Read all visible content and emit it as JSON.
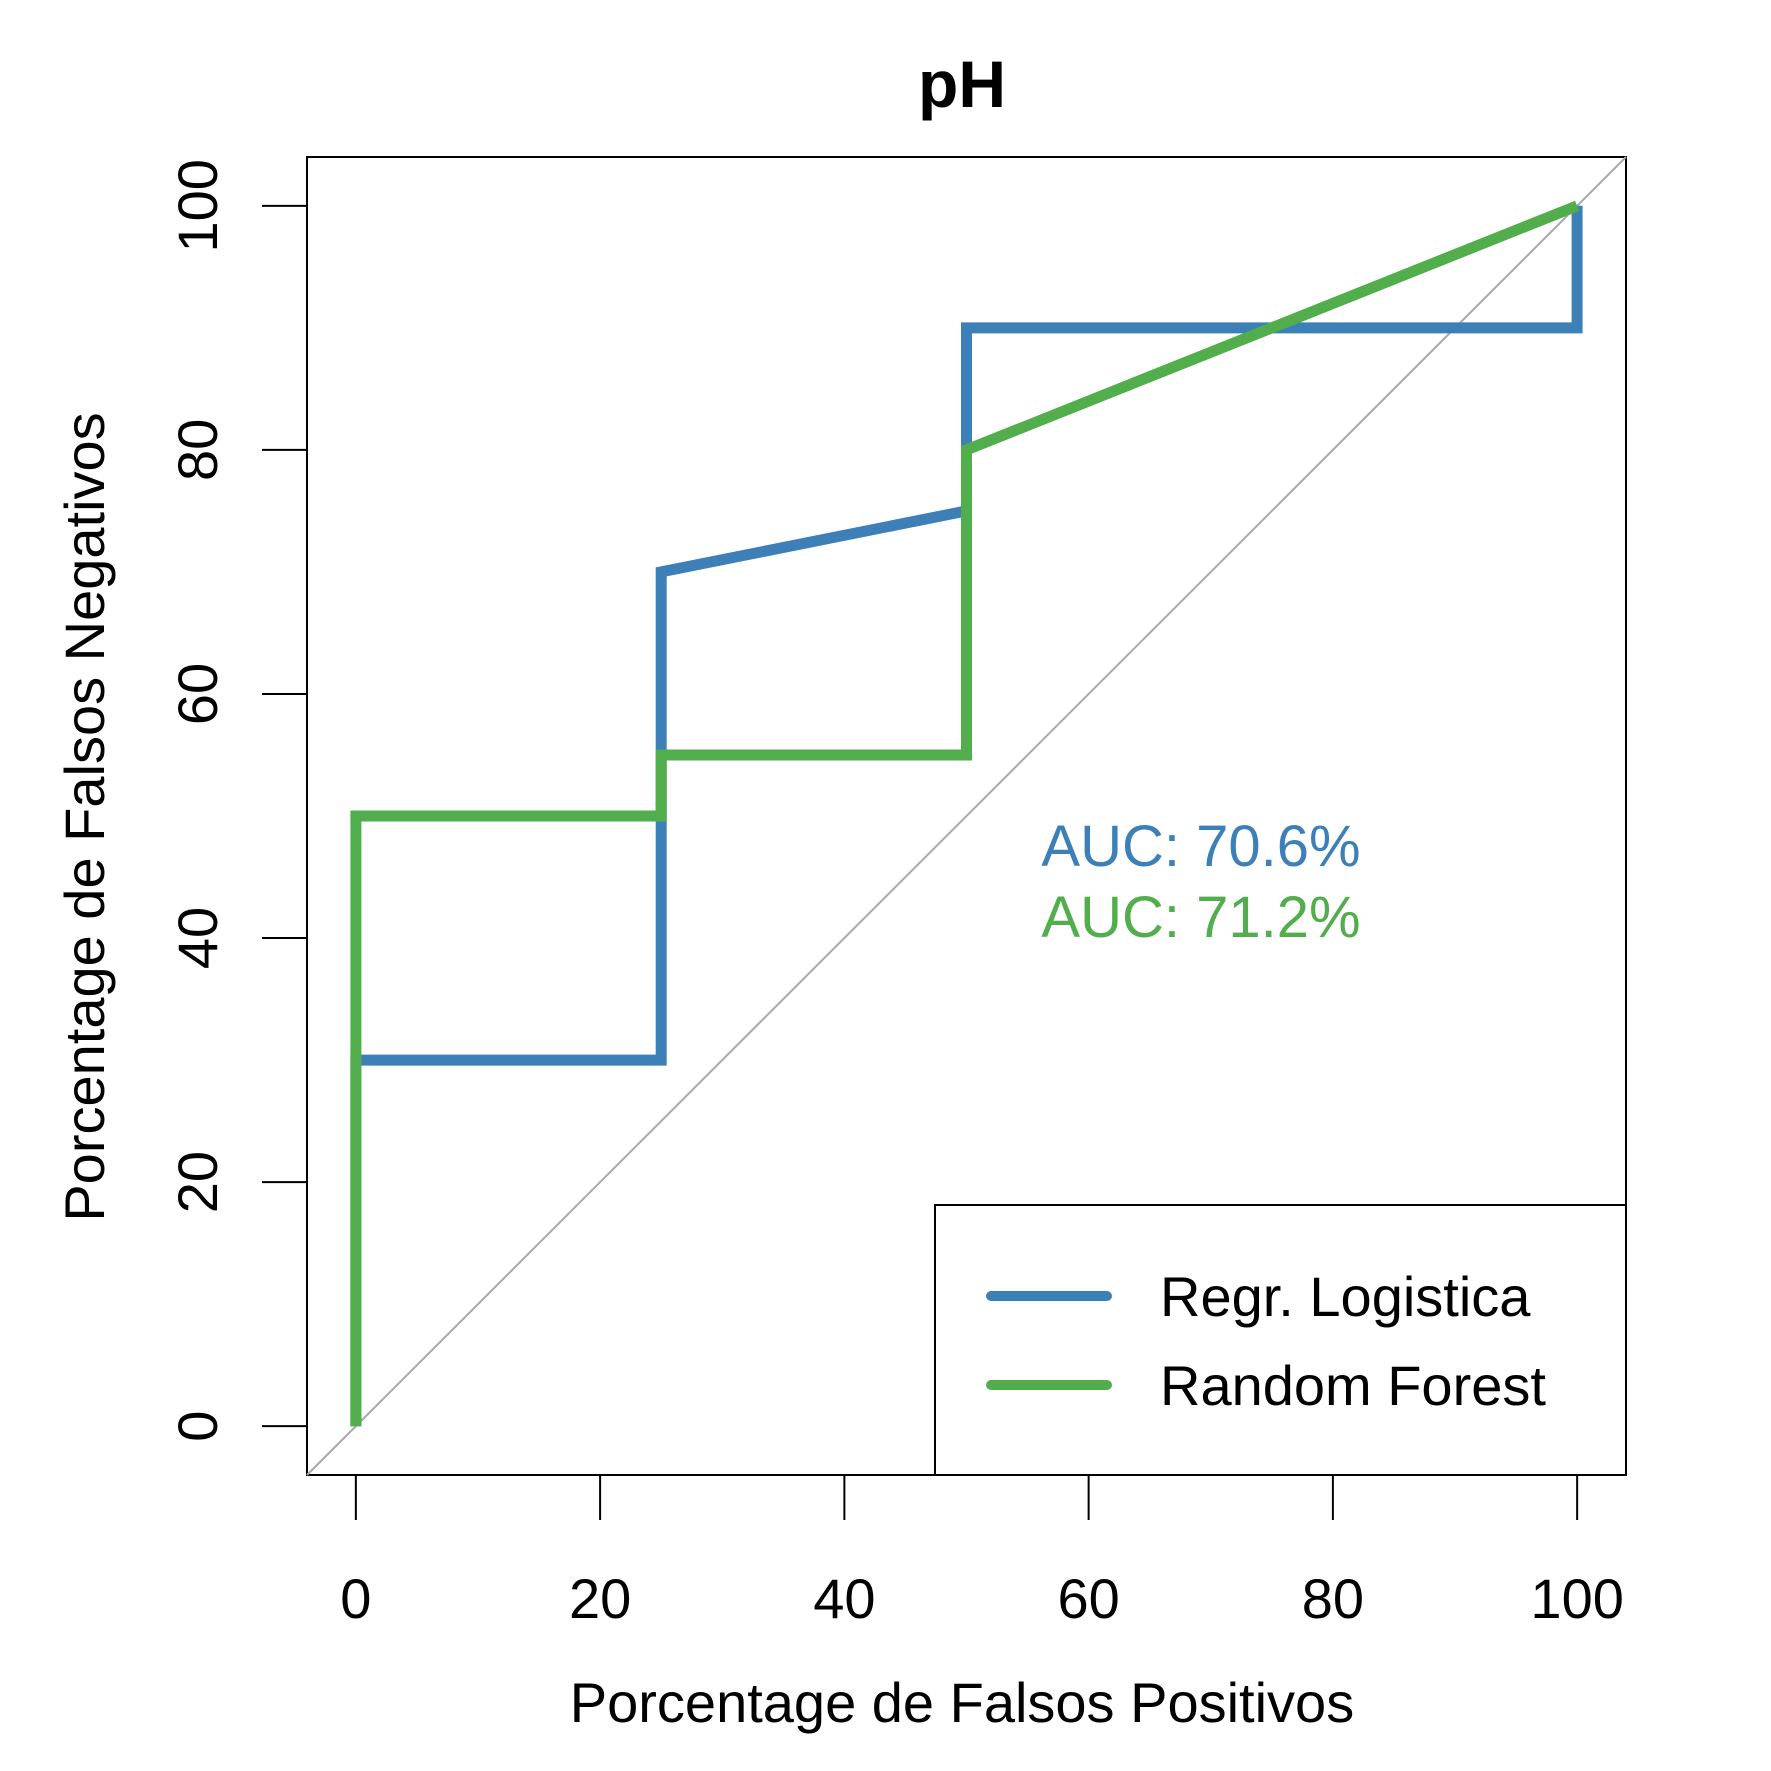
{
  "chart_data": {
    "type": "line",
    "title": "pH",
    "xlabel": "Porcentage de Falsos Positivos",
    "ylabel": "Porcentage de Falsos Negativos",
    "xlim": [
      -4,
      104
    ],
    "ylim": [
      -4,
      104
    ],
    "xticks": [
      0,
      20,
      40,
      60,
      80,
      100
    ],
    "yticks": [
      0,
      20,
      40,
      60,
      80,
      100
    ],
    "xtick_labels": [
      "0",
      "20",
      "40",
      "60",
      "80",
      "100"
    ],
    "ytick_labels": [
      "0",
      "20",
      "40",
      "60",
      "80",
      "100"
    ],
    "reference_line": {
      "from": [
        0,
        0
      ],
      "to": [
        100,
        100
      ],
      "color": "#a9a9a9"
    },
    "series": [
      {
        "name": "Regr. Logistica",
        "color": "#3d80b8",
        "auc_text": "AUC: 70.6%",
        "x": [
          0,
          0,
          25,
          25,
          50,
          50,
          100,
          100
        ],
        "y": [
          0,
          30,
          30,
          70,
          75,
          90,
          90,
          100
        ]
      },
      {
        "name": "Random Forest",
        "color": "#52ae4c",
        "auc_text": "AUC: 71.2%",
        "x": [
          0,
          0,
          25,
          25,
          50,
          50,
          100
        ],
        "y": [
          0,
          50,
          50,
          55,
          55,
          80,
          100
        ]
      }
    ],
    "legend": {
      "position": "bottom-right",
      "entries": [
        "Regr. Logistica",
        "Random Forest"
      ]
    }
  }
}
